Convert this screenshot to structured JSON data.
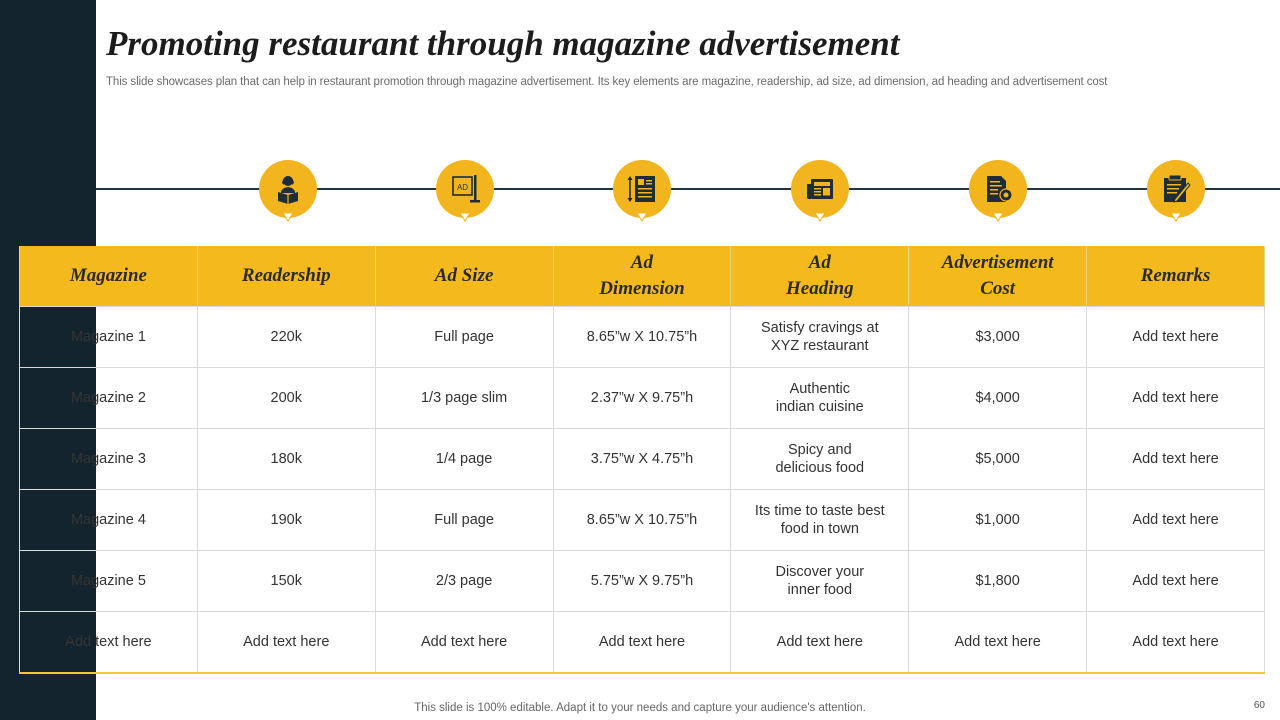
{
  "slide": {
    "title": "Promoting restaurant through magazine advertisement",
    "subtitle": "This slide showcases plan that can help in restaurant promotion through magazine advertisement. Its key elements are magazine, readership, ad size, ad dimension, ad heading and advertisement cost",
    "footer": "This slide is 100% editable. Adapt it to your needs and capture your audience's attention.",
    "page_number": "60"
  },
  "colors": {
    "accent": "#f3b91d",
    "sidebar": "#13242f",
    "icon_dark": "#1f2d36"
  },
  "icons": [
    {
      "name": "reader-icon"
    },
    {
      "name": "ad-board-icon",
      "label": "AD"
    },
    {
      "name": "dimension-icon"
    },
    {
      "name": "newspaper-icon"
    },
    {
      "name": "cost-document-icon"
    },
    {
      "name": "remarks-clipboard-icon"
    }
  ],
  "table": {
    "headers": [
      [
        "Magazine"
      ],
      [
        "Readership"
      ],
      [
        "Ad Size"
      ],
      [
        "Ad",
        "Dimension"
      ],
      [
        "Ad",
        "Heading"
      ],
      [
        "Advertisement",
        "Cost"
      ],
      [
        "Remarks"
      ]
    ],
    "rows": [
      [
        [
          "Magazine 1"
        ],
        [
          "220k"
        ],
        [
          "Full page"
        ],
        [
          "8.65”w X 10.75”h"
        ],
        [
          "Satisfy cravings at",
          "XYZ  restaurant"
        ],
        [
          "$3,000"
        ],
        [
          "Add text here"
        ]
      ],
      [
        [
          "Magazine 2"
        ],
        [
          "200k"
        ],
        [
          "1/3 page slim"
        ],
        [
          "2.37”w X 9.75”h"
        ],
        [
          "Authentic",
          "indian cuisine"
        ],
        [
          "$4,000"
        ],
        [
          "Add text here"
        ]
      ],
      [
        [
          "Magazine 3"
        ],
        [
          "180k"
        ],
        [
          "1/4 page"
        ],
        [
          "3.75”w X 4.75”h"
        ],
        [
          "Spicy and",
          "delicious food"
        ],
        [
          "$5,000"
        ],
        [
          "Add text here"
        ]
      ],
      [
        [
          "Magazine 4"
        ],
        [
          "190k"
        ],
        [
          "Full page"
        ],
        [
          "8.65”w X 10.75”h"
        ],
        [
          "Its time to taste best",
          "food in town"
        ],
        [
          "$1,000"
        ],
        [
          "Add text here"
        ]
      ],
      [
        [
          "Magazine 5"
        ],
        [
          "150k"
        ],
        [
          "2/3 page"
        ],
        [
          "5.75”w X 9.75”h"
        ],
        [
          "Discover your",
          "inner food"
        ],
        [
          "$1,800"
        ],
        [
          "Add text here"
        ]
      ],
      [
        [
          "Add text here"
        ],
        [
          "Add text here"
        ],
        [
          "Add text here"
        ],
        [
          "Add text here"
        ],
        [
          "Add text here"
        ],
        [
          "Add text here"
        ],
        [
          "Add text here"
        ]
      ]
    ]
  }
}
